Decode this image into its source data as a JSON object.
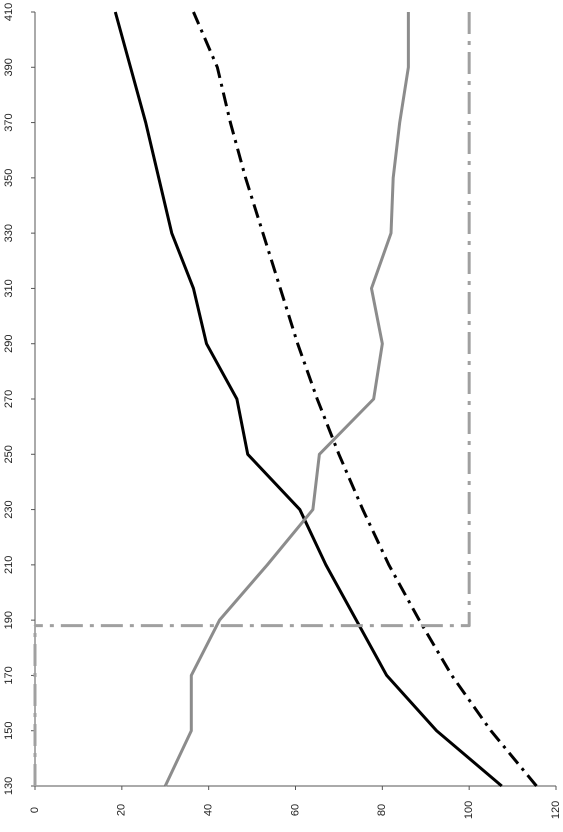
{
  "chart_data": {
    "type": "line",
    "orientation": "rotated-90",
    "title": "",
    "xlabel": "",
    "ylabel": "",
    "x": [
      130,
      150,
      170,
      190,
      210,
      230,
      250,
      270,
      290,
      310,
      330,
      350,
      370,
      390,
      410
    ],
    "x_ticks": [
      "130",
      "150",
      "170",
      "190",
      "210",
      "230",
      "250",
      "270",
      "290",
      "310",
      "330",
      "350",
      "370",
      "390",
      "410"
    ],
    "xlim": [
      130,
      410
    ],
    "y_ticks": [
      "0",
      "20",
      "40",
      "60",
      "80",
      "100",
      "120"
    ],
    "ylim": [
      0,
      120
    ],
    "grid": false,
    "legend": "none",
    "series": [
      {
        "color": "#000000",
        "style": "solid",
        "points": [
          [
            130,
            107.5
          ],
          [
            150,
            92.5
          ],
          [
            170,
            81
          ],
          [
            190,
            74
          ],
          [
            210,
            67
          ],
          [
            230,
            61
          ],
          [
            250,
            49
          ],
          [
            270,
            46.5
          ],
          [
            290,
            39.5
          ],
          [
            310,
            36.5
          ],
          [
            330,
            31.5
          ],
          [
            350,
            28.5
          ],
          [
            370,
            25.5
          ],
          [
            390,
            22
          ],
          [
            410,
            18.5
          ]
        ]
      },
      {
        "color": "#000000",
        "style": "dash-dot",
        "points": [
          [
            130,
            115.5
          ],
          [
            150,
            105
          ],
          [
            170,
            96
          ],
          [
            190,
            88.5
          ],
          [
            210,
            81.5
          ],
          [
            230,
            75.5
          ],
          [
            250,
            70
          ],
          [
            270,
            65
          ],
          [
            290,
            60.5
          ],
          [
            310,
            56.5
          ],
          [
            330,
            52.5
          ],
          [
            350,
            48.5
          ],
          [
            370,
            45
          ],
          [
            390,
            42
          ],
          [
            410,
            36.5
          ]
        ]
      },
      {
        "color": "#8c8c8c",
        "style": "solid",
        "points": [
          [
            130,
            30
          ],
          [
            150,
            36
          ],
          [
            170,
            36
          ],
          [
            190,
            42.5
          ],
          [
            210,
            53.5
          ],
          [
            230,
            64
          ],
          [
            250,
            65.5
          ],
          [
            270,
            78
          ],
          [
            290,
            80
          ],
          [
            310,
            77.5
          ],
          [
            330,
            82
          ],
          [
            350,
            82.5
          ],
          [
            370,
            84
          ],
          [
            390,
            86
          ],
          [
            410,
            86
          ]
        ]
      },
      {
        "color": "#a0a0a0",
        "style": "long-dash-dot",
        "points": [
          [
            410,
            100
          ],
          [
            188,
            100
          ],
          [
            188,
            0
          ]
        ]
      },
      {
        "color": "#a0a0a0",
        "style": "long-dash-dot",
        "points": [
          [
            130,
            0
          ],
          [
            188,
            0
          ]
        ]
      }
    ]
  }
}
